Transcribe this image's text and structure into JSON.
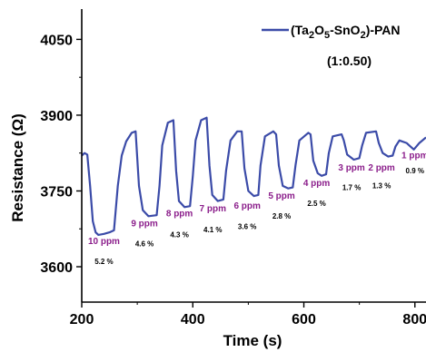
{
  "chart_data": {
    "type": "line",
    "xlabel": "Time (s)",
    "ylabel": "Resistance (Ω)",
    "xlim": [
      200,
      820
    ],
    "ylim": [
      3530,
      4110
    ],
    "x_ticks": [
      200,
      400,
      600,
      800
    ],
    "y_ticks": [
      3600,
      3750,
      3900,
      4050
    ],
    "x_tick_labels": [
      "200",
      "400",
      "600",
      "800"
    ],
    "y_tick_labels": [
      "3600",
      "3750",
      "3900",
      "4050"
    ],
    "legend": {
      "label_parts": [
        "(Ta",
        "2",
        "O",
        "5",
        "-SnO",
        "2",
        ")-PAN"
      ],
      "ratio": "(1:0.50)",
      "placement": "top-right"
    },
    "line_color": "#3b4ba8",
    "label_color": "#8b1e8b",
    "series": [
      {
        "name": "(Ta2O5-SnO2)-PAN",
        "points": [
          [
            200,
            3820
          ],
          [
            205,
            3825
          ],
          [
            210,
            3822
          ],
          [
            215,
            3760
          ],
          [
            220,
            3690
          ],
          [
            225,
            3668
          ],
          [
            230,
            3663
          ],
          [
            240,
            3665
          ],
          [
            250,
            3668
          ],
          [
            258,
            3672
          ],
          [
            265,
            3760
          ],
          [
            272,
            3820
          ],
          [
            280,
            3848
          ],
          [
            290,
            3865
          ],
          [
            297,
            3868
          ],
          [
            303,
            3760
          ],
          [
            310,
            3712
          ],
          [
            320,
            3700
          ],
          [
            335,
            3702
          ],
          [
            340,
            3760
          ],
          [
            345,
            3840
          ],
          [
            355,
            3885
          ],
          [
            365,
            3890
          ],
          [
            370,
            3790
          ],
          [
            375,
            3730
          ],
          [
            385,
            3718
          ],
          [
            395,
            3720
          ],
          [
            400,
            3780
          ],
          [
            405,
            3850
          ],
          [
            415,
            3890
          ],
          [
            425,
            3895
          ],
          [
            430,
            3800
          ],
          [
            435,
            3742
          ],
          [
            445,
            3730
          ],
          [
            455,
            3733
          ],
          [
            460,
            3790
          ],
          [
            468,
            3850
          ],
          [
            480,
            3868
          ],
          [
            488,
            3868
          ],
          [
            493,
            3795
          ],
          [
            500,
            3750
          ],
          [
            510,
            3740
          ],
          [
            518,
            3742
          ],
          [
            522,
            3800
          ],
          [
            530,
            3858
          ],
          [
            545,
            3868
          ],
          [
            550,
            3862
          ],
          [
            555,
            3800
          ],
          [
            562,
            3760
          ],
          [
            572,
            3755
          ],
          [
            580,
            3757
          ],
          [
            585,
            3800
          ],
          [
            592,
            3850
          ],
          [
            608,
            3865
          ],
          [
            612,
            3862
          ],
          [
            617,
            3810
          ],
          [
            625,
            3785
          ],
          [
            632,
            3780
          ],
          [
            640,
            3783
          ],
          [
            645,
            3825
          ],
          [
            652,
            3858
          ],
          [
            668,
            3862
          ],
          [
            672,
            3850
          ],
          [
            678,
            3822
          ],
          [
            690,
            3812
          ],
          [
            700,
            3815
          ],
          [
            705,
            3840
          ],
          [
            712,
            3865
          ],
          [
            730,
            3868
          ],
          [
            735,
            3845
          ],
          [
            742,
            3825
          ],
          [
            752,
            3818
          ],
          [
            760,
            3820
          ],
          [
            765,
            3838
          ],
          [
            772,
            3850
          ],
          [
            785,
            3845
          ],
          [
            790,
            3840
          ],
          [
            798,
            3832
          ],
          [
            808,
            3845
          ],
          [
            820,
            3856
          ]
        ]
      }
    ],
    "annotations": [
      {
        "concentration": "10 ppm",
        "response": "5.2 %",
        "x": 240,
        "y_conc": 3645,
        "y_resp": 3605
      },
      {
        "concentration": "9 ppm",
        "response": "4.6 %",
        "x": 313,
        "y_conc": 3680,
        "y_resp": 3640
      },
      {
        "concentration": "8 ppm",
        "response": "4.3 %",
        "x": 376,
        "y_conc": 3700,
        "y_resp": 3658
      },
      {
        "concentration": "7 ppm",
        "response": "4.1 %",
        "x": 436,
        "y_conc": 3710,
        "y_resp": 3668
      },
      {
        "concentration": "6 ppm",
        "response": "3.6 %",
        "x": 498,
        "y_conc": 3715,
        "y_resp": 3675
      },
      {
        "concentration": "5 ppm",
        "response": "2.8 %",
        "x": 560,
        "y_conc": 3735,
        "y_resp": 3695
      },
      {
        "concentration": "4 ppm",
        "response": "2.5 %",
        "x": 623,
        "y_conc": 3760,
        "y_resp": 3720
      },
      {
        "concentration": "3 ppm",
        "response": "1.7 %",
        "x": 686,
        "y_conc": 3790,
        "y_resp": 3752
      },
      {
        "concentration": "2 ppm",
        "response": "1.3 %",
        "x": 740,
        "y_conc": 3790,
        "y_resp": 3755
      },
      {
        "concentration": "1 ppm",
        "response": "0.9 %",
        "x": 800,
        "y_conc": 3815,
        "y_resp": 3785
      }
    ]
  }
}
